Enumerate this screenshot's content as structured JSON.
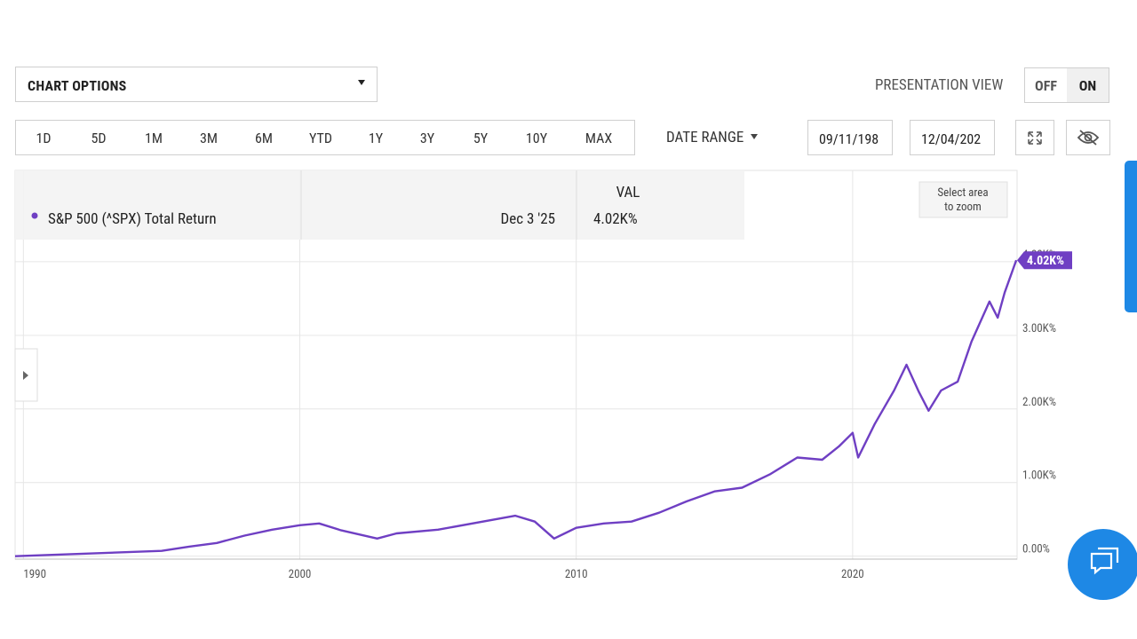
{
  "toolbar": {
    "chart_options": "CHART OPTIONS",
    "presentation_view": "PRESENTATION VIEW",
    "toggle": [
      "OFF",
      "ON"
    ],
    "ranges": [
      "1D",
      "5D",
      "1M",
      "3M",
      "6M",
      "YTD",
      "1Y",
      "3Y",
      "5Y",
      "10Y",
      "MAX"
    ],
    "date_range": "DATE RANGE",
    "start_date": "09/11/198",
    "end_date": "12/04/202"
  },
  "chart_data": {
    "type": "line",
    "x": [
      1989.7,
      1995,
      1996,
      1997,
      1998,
      1999,
      2000,
      2000.7,
      2001.5,
      2002.8,
      2003.5,
      2005,
      2007.8,
      2008.5,
      2009.2,
      2010,
      2011,
      2012,
      2013,
      2014,
      2015,
      2016,
      2017,
      2018,
      2018.9,
      2019.5,
      2020,
      2020.2,
      2020.8,
      2021.5,
      2021.95,
      2022.4,
      2022.75,
      2023.2,
      2023.8,
      2024.3,
      2024.95,
      2025.25,
      2025.5,
      2025.92
    ],
    "series": [
      {
        "name": "S&P 500 (^SPX) Total Return",
        "color": "#6f3fc3",
        "values": [
          0,
          72,
          130,
          180,
          280,
          360,
          420,
          445,
          350,
          240,
          310,
          360,
          550,
          470,
          240,
          385,
          445,
          470,
          590,
          745,
          880,
          930,
          1110,
          1340,
          1310,
          1490,
          1675,
          1340,
          1795,
          2250,
          2600,
          2230,
          1975,
          2250,
          2370,
          2915,
          3460,
          3240,
          3580,
          4020
        ]
      }
    ],
    "xlim": [
      1989.7,
      2025.95
    ],
    "xticks": [
      1990,
      2000,
      2010,
      2020
    ],
    "ylim": [
      -40,
      5240
    ],
    "yticks": [
      {
        "value": 0,
        "label": "0.00%"
      },
      {
        "value": 1000,
        "label": "1.00K%"
      },
      {
        "value": 2000,
        "label": "2.00K%"
      },
      {
        "value": 3000,
        "label": "3.00K%"
      },
      {
        "value": 4000,
        "label": "4.00K%"
      }
    ],
    "grid": true,
    "tooltip_header": "VAL",
    "tooltip_date": "Dec 3 '25",
    "last_value": {
      "value": 4020,
      "label": "4.02K%"
    },
    "zoom_hint": [
      "Select area",
      "to zoom"
    ]
  }
}
